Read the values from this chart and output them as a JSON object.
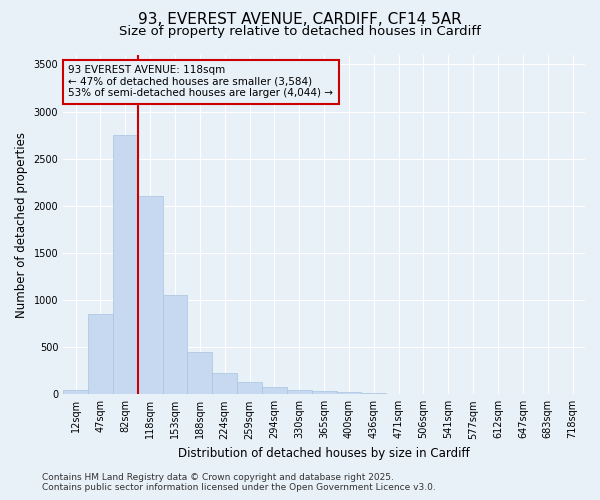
{
  "title_line1": "93, EVEREST AVENUE, CARDIFF, CF14 5AR",
  "title_line2": "Size of property relative to detached houses in Cardiff",
  "xlabel": "Distribution of detached houses by size in Cardiff",
  "ylabel": "Number of detached properties",
  "bar_color": "#c6d9f0",
  "bar_edge_color": "#a8c4e0",
  "highlight_color": "#cc0000",
  "background_color": "#e8f0f8",
  "grid_color": "#ffffff",
  "categories": [
    "12sqm",
    "47sqm",
    "82sqm",
    "118sqm",
    "153sqm",
    "188sqm",
    "224sqm",
    "259sqm",
    "294sqm",
    "330sqm",
    "365sqm",
    "400sqm",
    "436sqm",
    "471sqm",
    "506sqm",
    "541sqm",
    "577sqm",
    "612sqm",
    "647sqm",
    "683sqm",
    "718sqm"
  ],
  "values": [
    50,
    850,
    2750,
    2100,
    1050,
    450,
    230,
    130,
    80,
    50,
    30,
    20,
    12,
    5,
    3,
    2,
    1,
    1,
    0,
    0,
    0
  ],
  "highlight_index": 3,
  "annotation_title": "93 EVEREST AVENUE: 118sqm",
  "annotation_line2": "← 47% of detached houses are smaller (3,584)",
  "annotation_line3": "53% of semi-detached houses are larger (4,044) →",
  "ylim": [
    0,
    3600
  ],
  "yticks": [
    0,
    500,
    1000,
    1500,
    2000,
    2500,
    3000,
    3500
  ],
  "footer_line1": "Contains HM Land Registry data © Crown copyright and database right 2025.",
  "footer_line2": "Contains public sector information licensed under the Open Government Licence v3.0.",
  "title_fontsize": 11,
  "subtitle_fontsize": 9.5,
  "axis_label_fontsize": 8.5,
  "tick_fontsize": 7,
  "annotation_fontsize": 7.5,
  "footer_fontsize": 6.5
}
